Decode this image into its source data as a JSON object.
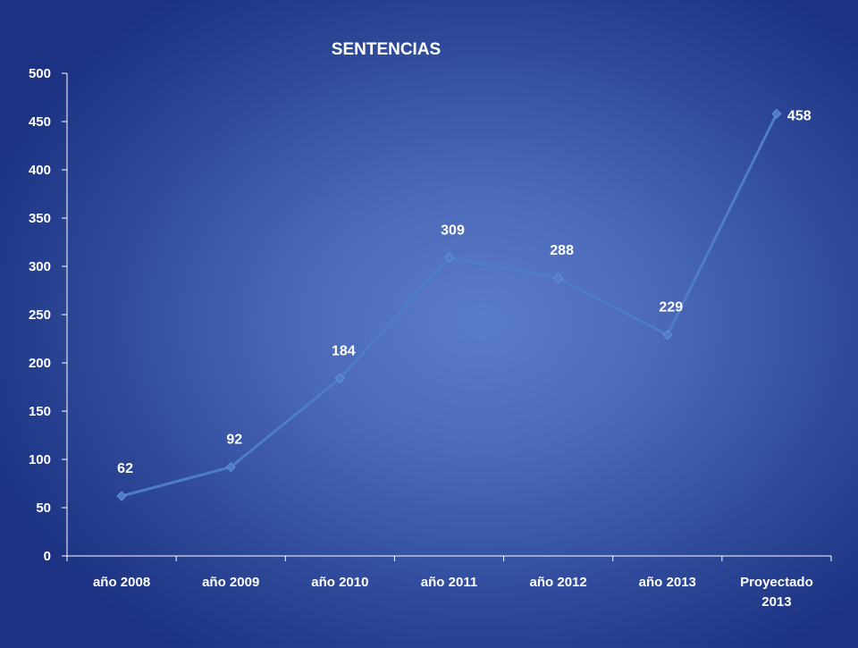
{
  "chart_data": {
    "type": "line",
    "title": "SENTENCIAS",
    "xlabel": "",
    "ylabel": "",
    "categories": [
      [
        "año 2008"
      ],
      [
        "año 2009"
      ],
      [
        "año 2010"
      ],
      [
        "año 2011"
      ],
      [
        "año 2012"
      ],
      [
        "año 2013"
      ],
      [
        "Proyectado",
        "2013"
      ]
    ],
    "series": [
      {
        "values": [
          62,
          92,
          184,
          309,
          288,
          229,
          458
        ]
      }
    ],
    "ylim": [
      0,
      500
    ],
    "yticks": [
      0,
      50,
      100,
      150,
      200,
      250,
      300,
      350,
      400,
      450,
      500
    ],
    "data_labels": true,
    "marker": "diamond",
    "grid": false,
    "legend": "none",
    "colors": {
      "line": "#4f7cc6",
      "axis": "#ffffff",
      "text": "#ffffff"
    }
  }
}
